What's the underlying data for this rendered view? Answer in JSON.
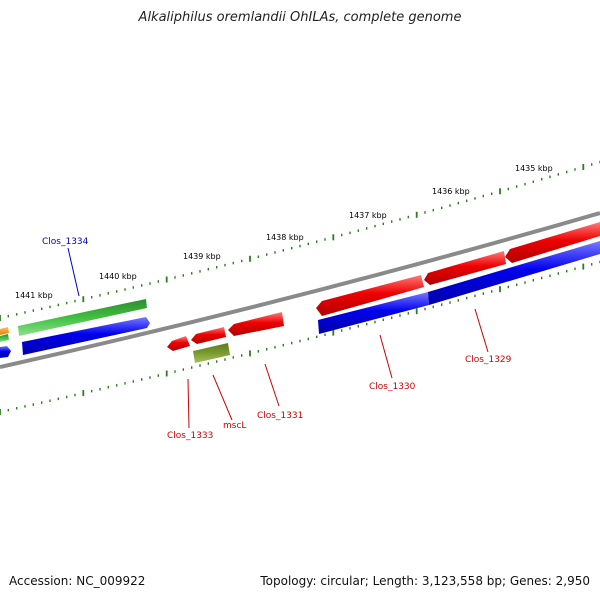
{
  "title": "Alkaliphilus oremlandii OhILAs, complete genome",
  "accession": "Accession: NC_009922",
  "summary": "Topology: circular; Length: 3,123,558 bp; Genes: 2,950",
  "colors": {
    "backbone": "#8a8a8a",
    "tick": "#2e7d1e",
    "label_red": "#cc0000",
    "label_blue": "#0000cc"
  },
  "ruler_labels": [
    "1435 kbp",
    "1436 kbp",
    "1437 kbp",
    "1438 kbp",
    "1439 kbp",
    "1440 kbp",
    "1441 kbp"
  ],
  "genes": [
    {
      "name": "Clos_1334",
      "color": "blue"
    },
    {
      "name": "mscL",
      "color": "red"
    },
    {
      "name": "Clos_1333",
      "color": "red"
    },
    {
      "name": "Clos_1331",
      "color": "red"
    },
    {
      "name": "Clos_1330",
      "color": "red"
    },
    {
      "name": "Clos_1329",
      "color": "red"
    }
  ]
}
